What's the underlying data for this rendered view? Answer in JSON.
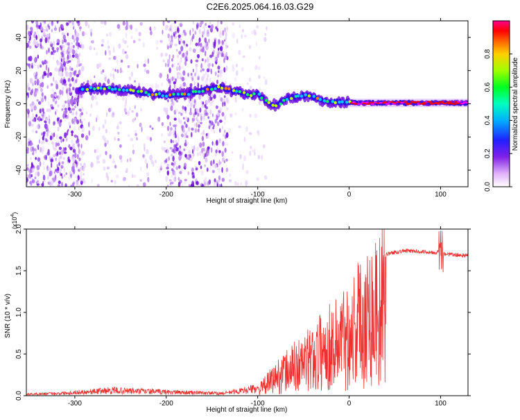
{
  "chart_data": [
    {
      "type": "heatmap",
      "title": "C2E6.2025.064.16.03.G29",
      "xlabel": "Height of straight line (km)",
      "ylabel": "Frequency (Hz)",
      "xlim": [
        -353,
        130
      ],
      "ylim": [
        -50,
        50
      ],
      "xticks": [
        -300,
        -200,
        -100,
        0,
        100
      ],
      "yticks": [
        -40,
        -20,
        0,
        20,
        40
      ],
      "colorbar": {
        "label": "Normalized spectral amplitude",
        "range": [
          0,
          1
        ],
        "ticks": [
          "0.0",
          "0.2",
          "0.4",
          "0.6",
          "0.8"
        ]
      },
      "ridge": {
        "x": [
          -295,
          -280,
          -260,
          -240,
          -220,
          -200,
          -180,
          -160,
          -150,
          -140,
          -130,
          -120,
          -110,
          -100,
          -90,
          -80,
          -70,
          -60,
          -50,
          -40,
          -30,
          -20,
          -10,
          0,
          10,
          30,
          60,
          100,
          130
        ],
        "y": [
          9,
          9,
          9,
          8,
          6,
          5,
          6,
          8,
          9,
          10,
          8,
          7,
          5,
          6,
          1,
          -1,
          3,
          4,
          5,
          4,
          2,
          1,
          1,
          1,
          0.5,
          0.5,
          0.5,
          0.5,
          0.5
        ]
      },
      "colors": [
        "#ffffff",
        "#e6d0fb",
        "#b070ee",
        "#7010e0",
        "#3010e8",
        "#00c8ff",
        "#00ff60",
        "#c0ff00",
        "#ff8000",
        "#ff0000",
        "#ff00ff"
      ]
    },
    {
      "type": "line",
      "xlabel": "Height of straight line (km)",
      "ylabel": "SNR (10 * v/v)",
      "y_multiplier": "(x10",
      "y_multiplier_exp": "4",
      "y_multiplier_close": ")",
      "xlim": [
        -353,
        130
      ],
      "ylim": [
        0,
        2.0
      ],
      "xticks": [
        -300,
        -200,
        -100,
        0,
        100
      ],
      "yticks": [
        "0.0",
        "0.5",
        "1.0",
        "1.5",
        "2.0"
      ],
      "series_color": "#ee3030",
      "envelope": {
        "x": [
          -353,
          -320,
          -290,
          -260,
          -230,
          -200,
          -170,
          -140,
          -120,
          -100,
          -90,
          -80,
          -70,
          -60,
          -50,
          -40,
          -30,
          -20,
          -10,
          0,
          10,
          20,
          30,
          40,
          50,
          60,
          80,
          95,
          100,
          105,
          115,
          130
        ],
        "y": [
          0.02,
          0.03,
          0.05,
          0.07,
          0.06,
          0.05,
          0.04,
          0.03,
          0.06,
          0.1,
          0.22,
          0.35,
          0.45,
          0.55,
          0.62,
          0.72,
          0.85,
          0.95,
          1.05,
          1.2,
          1.4,
          1.55,
          1.65,
          1.7,
          1.72,
          1.74,
          1.73,
          1.72,
          1.75,
          1.7,
          1.69,
          1.68
        ]
      }
    }
  ]
}
